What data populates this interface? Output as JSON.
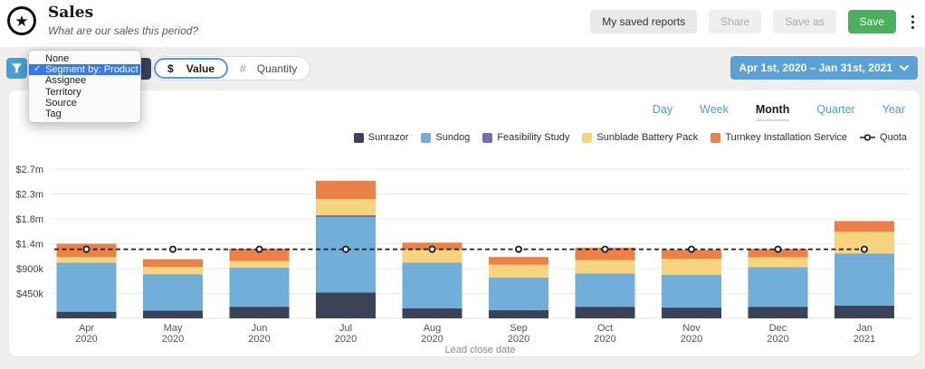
{
  "header": {
    "logo_icon": "star-badge-icon",
    "title": "Sales",
    "subtitle": "What are our sales this period?",
    "buttons": {
      "my_saved_reports": "My saved reports",
      "share": "Share",
      "save_as": "Save as",
      "save": "Save"
    }
  },
  "filter_bar": {
    "filter_icon": "funnel-icon",
    "segment_dropdown": {
      "open": true,
      "options": [
        {
          "label": "None",
          "selected": false
        },
        {
          "label": "Segment by: Product",
          "selected": true
        },
        {
          "label": "Assignee",
          "selected": false
        },
        {
          "label": "Territory",
          "selected": false
        },
        {
          "label": "Source",
          "selected": false
        },
        {
          "label": "Tag",
          "selected": false
        }
      ]
    },
    "metric_toggle": [
      {
        "symbol": "$",
        "label": "Value",
        "selected": true
      },
      {
        "symbol": "#",
        "label": "Quantity",
        "selected": false
      }
    ],
    "date_range": {
      "label": "Apr 1st, 2020 – Jan 31st, 2021",
      "icon": "chevron-down-icon"
    }
  },
  "chart_panel": {
    "granularity_tabs": [
      {
        "label": "Day",
        "selected": false
      },
      {
        "label": "Week",
        "selected": false
      },
      {
        "label": "Month",
        "selected": true
      },
      {
        "label": "Quarter",
        "selected": false
      },
      {
        "label": "Year",
        "selected": false
      }
    ]
  },
  "chart_data": {
    "type": "bar",
    "subtype": "stacked-bar-with-quota-line",
    "unit": "USD thousands",
    "xlabel": "Lead close date",
    "categories": [
      {
        "month": "Apr",
        "year": "2020"
      },
      {
        "month": "May",
        "year": "2020"
      },
      {
        "month": "Jun",
        "year": "2020"
      },
      {
        "month": "Jul",
        "year": "2020"
      },
      {
        "month": "Aug",
        "year": "2020"
      },
      {
        "month": "Sep",
        "year": "2020"
      },
      {
        "month": "Oct",
        "year": "2020"
      },
      {
        "month": "Nov",
        "year": "2020"
      },
      {
        "month": "Dec",
        "year": "2020"
      },
      {
        "month": "Jan",
        "year": "2021"
      }
    ],
    "series": [
      {
        "name": "Sunrazor",
        "color": "#3C4257",
        "values": [
          120,
          140,
          210,
          470,
          180,
          150,
          210,
          195,
          210,
          230
        ]
      },
      {
        "name": "Sundog",
        "color": "#72AEDA",
        "values": [
          890,
          660,
          710,
          1360,
          830,
          590,
          600,
          590,
          715,
          945
        ]
      },
      {
        "name": "Feasibility Study",
        "color": "#6B70B8",
        "values": [
          0,
          0,
          0,
          35,
          0,
          0,
          0,
          0,
          0,
          0
        ]
      },
      {
        "name": "Sunblade Battery Pack",
        "color": "#F6D37D",
        "values": [
          100,
          130,
          120,
          295,
          230,
          230,
          245,
          290,
          180,
          390
        ]
      },
      {
        "name": "Turnkey Installation Service",
        "color": "#EC8148",
        "values": [
          240,
          140,
          220,
          330,
          130,
          140,
          225,
          165,
          150,
          195
        ]
      }
    ],
    "quota": {
      "name": "Quota",
      "style": "dashed-line-with-circle-markers",
      "color": "#1B1B1B",
      "values": [
        1250,
        1250,
        1250,
        1250,
        1250,
        1250,
        1250,
        1250,
        1250,
        1250
      ]
    },
    "y_ticks": [
      {
        "value": 450,
        "label": "$450k"
      },
      {
        "value": 900,
        "label": "$900k"
      },
      {
        "value": 1350,
        "label": "$1.4m"
      },
      {
        "value": 1800,
        "label": "$1.8m"
      },
      {
        "value": 2250,
        "label": "$2.3m"
      },
      {
        "value": 2700,
        "label": "$2.7m"
      }
    ],
    "ylim": [
      0,
      2950
    ],
    "grid": true,
    "legend_position": "top-right"
  },
  "colors": {
    "page_bg": "#F0EFED",
    "panel_bg": "#FFFFFF",
    "accent_blue": "#4C9FD6",
    "date_button_blue": "#5BA0D6",
    "save_green": "#4CAF5E",
    "menu_selection_blue": "#3478F6",
    "quota_line": "#1B1B1B"
  }
}
